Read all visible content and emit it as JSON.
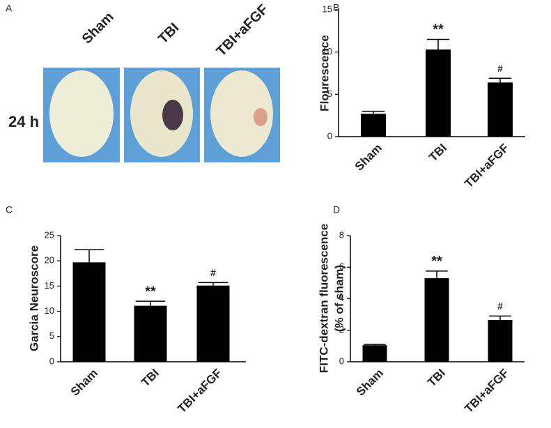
{
  "panel_a": {
    "panel_label": "A",
    "columns": [
      "Sham",
      "TBI",
      "TBI+aFGF"
    ],
    "row_label": "24 h"
  },
  "chart_data": [
    {
      "type": "bar",
      "panel_label": "B",
      "y_label": "Flourescence",
      "categories": [
        "Sham",
        "TBI",
        "TBI+aFGF"
      ],
      "values": [
        2.7,
        10.3,
        6.4
      ],
      "errors": [
        0.3,
        1.2,
        0.5
      ],
      "annotations": [
        null,
        "**",
        "#"
      ],
      "color": "#000000",
      "ylim": [
        0,
        15
      ],
      "yticks": [
        0,
        5,
        10,
        15
      ]
    },
    {
      "type": "bar",
      "panel_label": "C",
      "y_label": "Garcia Neuroscore",
      "categories": [
        "Sham",
        "TBI",
        "TBI+aFGF"
      ],
      "values": [
        19.7,
        11.1,
        15.1
      ],
      "errors": [
        2.5,
        0.9,
        0.6
      ],
      "annotations": [
        null,
        "**",
        "#"
      ],
      "color": "#000000",
      "ylim": [
        0,
        25
      ],
      "yticks": [
        0,
        5,
        10,
        15,
        20,
        25
      ]
    },
    {
      "type": "bar",
      "panel_label": "D",
      "y_label": [
        "FITC-dextran fluorescence",
        "(% of sham)"
      ],
      "categories": [
        "Sham",
        "TBI",
        "TBI+aFGF"
      ],
      "values": [
        1.05,
        5.3,
        2.65
      ],
      "errors": [
        0.05,
        0.45,
        0.25
      ],
      "annotations": [
        null,
        "**",
        "#"
      ],
      "color": "#000000",
      "ylim": [
        0,
        8
      ],
      "yticks": [
        0,
        2,
        4,
        6,
        8
      ]
    }
  ]
}
